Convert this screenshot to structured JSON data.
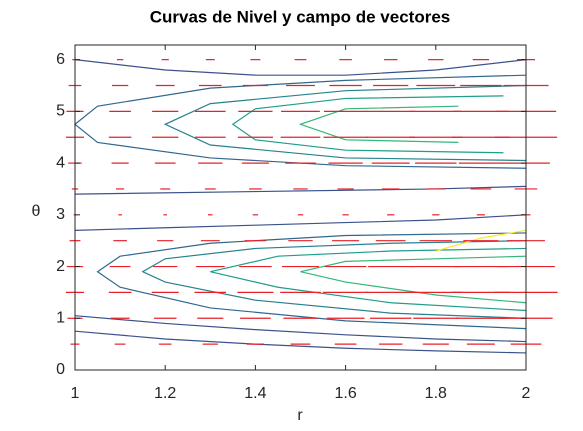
{
  "chart_data": {
    "type": "contour",
    "title": "Curvas de Nivel y campo de vectores",
    "xlabel": "r",
    "ylabel": "θ",
    "xlim": [
      1,
      2
    ],
    "ylim": [
      0,
      6.2832
    ],
    "xticks": [
      1,
      1.2,
      1.4,
      1.6,
      1.8,
      2
    ],
    "yticks": [
      0,
      1,
      2,
      3,
      4,
      5,
      6
    ],
    "contours": [
      {
        "color": "#3b528b",
        "x": [
          1,
          1.2,
          1.4,
          1.6,
          1.8,
          2
        ],
        "y": [
          0.75,
          0.6,
          0.5,
          0.42,
          0.37,
          0.33
        ]
      },
      {
        "color": "#3b528b",
        "x": [
          1,
          1.2,
          1.4,
          1.6,
          1.8,
          2
        ],
        "y": [
          1.05,
          0.9,
          0.78,
          0.68,
          0.6,
          0.55
        ]
      },
      {
        "color": "#3b528b",
        "x": [
          1,
          1.2,
          1.4,
          1.6,
          1.8,
          2
        ],
        "y": [
          2.7,
          2.75,
          2.8,
          2.85,
          2.9,
          3.0
        ]
      },
      {
        "color": "#31688e",
        "x": [
          2,
          1.6,
          1.3,
          1.1,
          1.05,
          1.1,
          1.3,
          1.6,
          2
        ],
        "y": [
          0.8,
          0.95,
          1.2,
          1.6,
          1.9,
          2.2,
          2.45,
          2.6,
          2.65
        ]
      },
      {
        "color": "#26828e",
        "x": [
          2,
          1.7,
          1.4,
          1.2,
          1.15,
          1.2,
          1.4,
          1.7,
          2
        ],
        "y": [
          1.0,
          1.1,
          1.35,
          1.7,
          1.9,
          2.15,
          2.35,
          2.45,
          2.5
        ]
      },
      {
        "color": "#1f9e89",
        "x": [
          2,
          1.7,
          1.45,
          1.3,
          1.45,
          1.7,
          2
        ],
        "y": [
          1.15,
          1.3,
          1.6,
          1.9,
          2.2,
          2.3,
          2.35
        ]
      },
      {
        "color": "#35b779",
        "x": [
          2,
          1.8,
          1.6,
          1.5,
          1.6,
          1.8,
          2
        ],
        "y": [
          1.3,
          1.45,
          1.7,
          1.9,
          2.1,
          2.15,
          2.2
        ]
      },
      {
        "color": "#3b528b",
        "x": [
          1,
          1.2,
          1.4,
          1.6,
          1.8,
          2
        ],
        "y": [
          6.0,
          5.8,
          5.7,
          5.7,
          5.8,
          6.0
        ]
      },
      {
        "color": "#3b528b",
        "x": [
          1,
          1.4,
          1.8,
          2
        ],
        "y": [
          3.4,
          3.45,
          3.5,
          3.55
        ]
      },
      {
        "color": "#31688e",
        "x": [
          2,
          1.6,
          1.3,
          1.05,
          1.0,
          1.05,
          1.3,
          1.6,
          2
        ],
        "y": [
          3.9,
          3.95,
          4.1,
          4.4,
          4.75,
          5.1,
          5.45,
          5.6,
          5.7
        ]
      },
      {
        "color": "#26828e",
        "x": [
          2,
          1.6,
          1.3,
          1.2,
          1.3,
          1.6,
          2
        ],
        "y": [
          4.05,
          4.1,
          4.35,
          4.75,
          5.15,
          5.4,
          5.5
        ]
      },
      {
        "color": "#1f9e89",
        "x": [
          1.95,
          1.6,
          1.4,
          1.35,
          1.4,
          1.6,
          1.95
        ],
        "y": [
          4.2,
          4.25,
          4.45,
          4.75,
          5.05,
          5.25,
          5.3
        ]
      },
      {
        "color": "#35b779",
        "x": [
          1.85,
          1.6,
          1.5,
          1.6,
          1.85
        ],
        "y": [
          4.4,
          4.45,
          4.75,
          5.05,
          5.1
        ]
      },
      {
        "color": "#fde725",
        "x": [
          1.8,
          1.9,
          2
        ],
        "y": [
          2.3,
          2.55,
          2.7
        ]
      }
    ],
    "quiver": {
      "color": "#e8202a",
      "x": [
        1,
        1.1,
        1.2,
        1.3,
        1.4,
        1.5,
        1.6,
        1.7,
        1.8,
        1.9,
        2
      ],
      "y": [
        0,
        0.5,
        1,
        1.5,
        2,
        2.5,
        3,
        3.5,
        4,
        4.5,
        5,
        5.5,
        6
      ],
      "u": [
        [
          0,
          0.01,
          0.017,
          0.02,
          0.018,
          0.012,
          0.003,
          0.007,
          0.015,
          0.02,
          0.019,
          0.014,
          0.006
        ],
        [
          0,
          0.012,
          0.021,
          0.025,
          0.023,
          0.015,
          0.004,
          0.009,
          0.019,
          0.025,
          0.024,
          0.018,
          0.007
        ],
        [
          0,
          0.014,
          0.025,
          0.03,
          0.027,
          0.018,
          0.004,
          0.011,
          0.023,
          0.029,
          0.029,
          0.021,
          0.008
        ],
        [
          0,
          0.017,
          0.029,
          0.035,
          0.032,
          0.021,
          0.005,
          0.012,
          0.027,
          0.034,
          0.034,
          0.025,
          0.01
        ],
        [
          0,
          0.019,
          0.034,
          0.04,
          0.036,
          0.024,
          0.006,
          0.014,
          0.03,
          0.039,
          0.038,
          0.028,
          0.011
        ],
        [
          0,
          0.022,
          0.038,
          0.045,
          0.041,
          0.027,
          0.006,
          0.016,
          0.034,
          0.044,
          0.043,
          0.032,
          0.013
        ],
        [
          0,
          0.024,
          0.042,
          0.05,
          0.046,
          0.03,
          0.007,
          0.018,
          0.038,
          0.049,
          0.048,
          0.036,
          0.014
        ],
        [
          0,
          0.026,
          0.046,
          0.055,
          0.05,
          0.033,
          0.008,
          0.019,
          0.042,
          0.054,
          0.053,
          0.039,
          0.015
        ],
        [
          0,
          0.029,
          0.05,
          0.06,
          0.055,
          0.036,
          0.008,
          0.021,
          0.046,
          0.059,
          0.058,
          0.043,
          0.017
        ],
        [
          0,
          0.031,
          0.055,
          0.065,
          0.059,
          0.039,
          0.009,
          0.023,
          0.049,
          0.064,
          0.062,
          0.046,
          0.018
        ],
        [
          0,
          0.034,
          0.059,
          0.07,
          0.064,
          0.042,
          0.01,
          0.025,
          0.053,
          0.069,
          0.067,
          0.05,
          0.02
        ]
      ]
    }
  }
}
